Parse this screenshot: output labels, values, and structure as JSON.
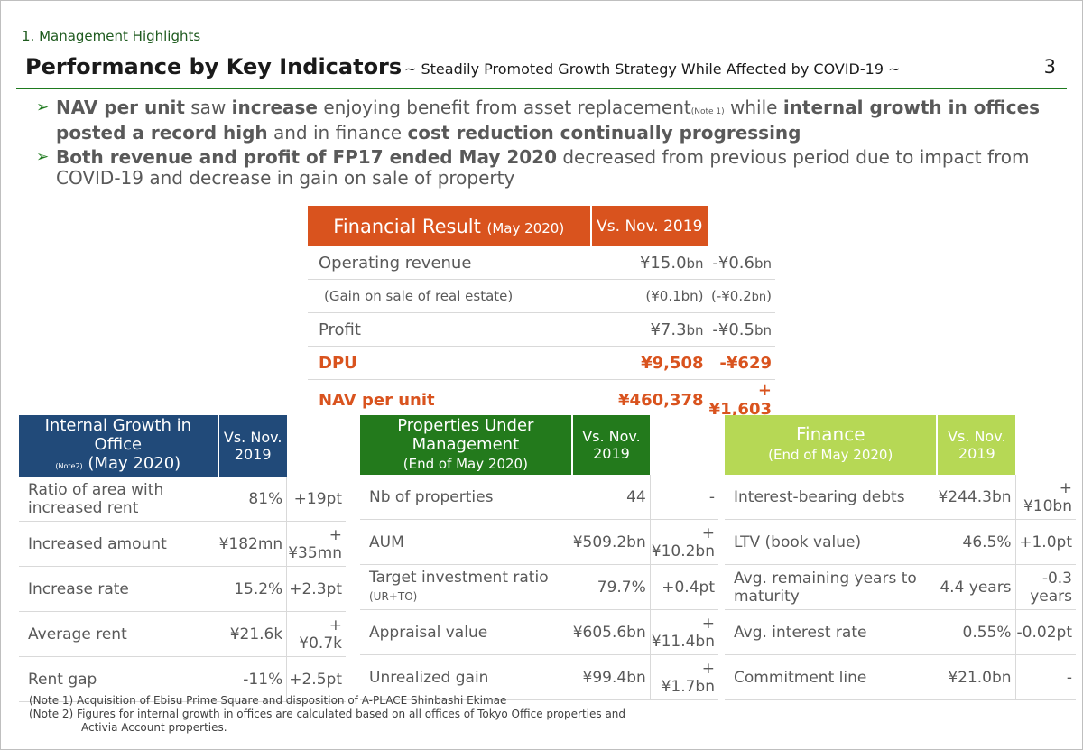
{
  "section_label": "1. Management Highlights",
  "title": "Performance by Key Indicators",
  "subtitle": "~ Steadily Promoted Growth Strategy While Affected by COVID-19 ~",
  "page_number": "3",
  "bullets": {
    "b1": {
      "p1": "NAV per unit",
      "p2": " saw ",
      "p3": "increase",
      "p4": " enjoying benefit from asset replacement",
      "note": "(Note 1)",
      "p5": "  while ",
      "p6": "internal growth in offices posted a record high",
      "p7": " and in finance ",
      "p8": "cost reduction continually progressing"
    },
    "b2": {
      "p1": "Both revenue and profit of FP17 ended May 2020",
      "p2": " decreased from previous period due to impact from COVID-19 and decrease in gain on sale of property"
    }
  },
  "financial": {
    "header_main": "Financial Result",
    "header_sub": "(May 2020)",
    "header_change": "Vs. Nov. 2019",
    "rows": [
      {
        "label": "Operating revenue",
        "value": "¥15.0",
        "value_unit": "bn",
        "change": "-¥0.6",
        "change_unit": "bn"
      },
      {
        "label": "(Gain on sale of real estate)",
        "value": "(¥0.1bn)",
        "change": "(-¥0.2",
        "change_unit": "bn",
        "change_tail": ")"
      },
      {
        "label": "Profit",
        "value": "¥7.3",
        "value_unit": "bn",
        "change": "-¥0.5",
        "change_unit": "bn"
      },
      {
        "label": "DPU",
        "value": "¥9,508",
        "change": "-¥629"
      },
      {
        "label": "NAV per unit",
        "value": "¥460,378",
        "change": "+¥1,603"
      }
    ]
  },
  "internal_growth": {
    "header_main": "Internal Growth in Office",
    "header_note": "(Note2)",
    "header_sub": "(May 2020)",
    "header_change": "Vs. Nov. 2019",
    "rows": [
      {
        "label": "Ratio of area with increased rent",
        "value": "81%",
        "change": "+19pt"
      },
      {
        "label": "Increased amount",
        "value": "¥182mn",
        "change": "+¥35mn"
      },
      {
        "label": "Increase rate",
        "value": "15.2%",
        "change": "+2.3pt"
      },
      {
        "label": "Average rent",
        "value": "¥21.6k",
        "change": "+¥0.7k"
      },
      {
        "label": "Rent gap",
        "value": "-11%",
        "change": "+2.5pt"
      }
    ]
  },
  "properties": {
    "header_main": "Properties Under Management",
    "header_sub": "(End of May 2020)",
    "header_change": "Vs. Nov. 2019",
    "rows": [
      {
        "label": "Nb of properties",
        "value": "44",
        "change": "-"
      },
      {
        "label": "AUM",
        "value": "¥509.2bn",
        "change": "+¥10.2bn"
      },
      {
        "label": "Target investment ratio",
        "label_small": "(UR+TO)",
        "value": "79.7%",
        "change": "+0.4pt"
      },
      {
        "label": "Appraisal value",
        "value": "¥605.6bn",
        "change": "+¥11.4bn"
      },
      {
        "label": "Unrealized gain",
        "value": "¥99.4bn",
        "change": "+¥1.7bn"
      }
    ]
  },
  "finance": {
    "header_main": "Finance",
    "header_sub": "(End of May 2020)",
    "header_change": "Vs. Nov. 2019",
    "rows": [
      {
        "label": "Interest-bearing debts",
        "value": "¥244.3bn",
        "change": "+¥10bn"
      },
      {
        "label": "LTV (book value)",
        "value": "46.5%",
        "change": "+1.0pt"
      },
      {
        "label": "Avg. remaining years to maturity",
        "value": "4.4 years",
        "change": "-0.3 years"
      },
      {
        "label": "Avg. interest rate",
        "value": "0.55%",
        "change": "-0.02pt"
      },
      {
        "label": "Commitment line",
        "value": "¥21.0bn",
        "change": "-"
      }
    ]
  },
  "notes": {
    "n1": "(Note 1) Acquisition of Ebisu Prime Square and disposition of A-PLACE Shinbashi Ekimae",
    "n2": "(Note 2) Figures for internal growth in offices are calculated based on all offices of Tokyo Office properties and",
    "n2b": "Activia Account properties."
  },
  "colors": {
    "financial_header": "#d9531e",
    "internal_growth_header": "#214a79",
    "properties_header": "#237a1c",
    "finance_header": "#b6d855",
    "accent_green": "#1e7a1e"
  }
}
